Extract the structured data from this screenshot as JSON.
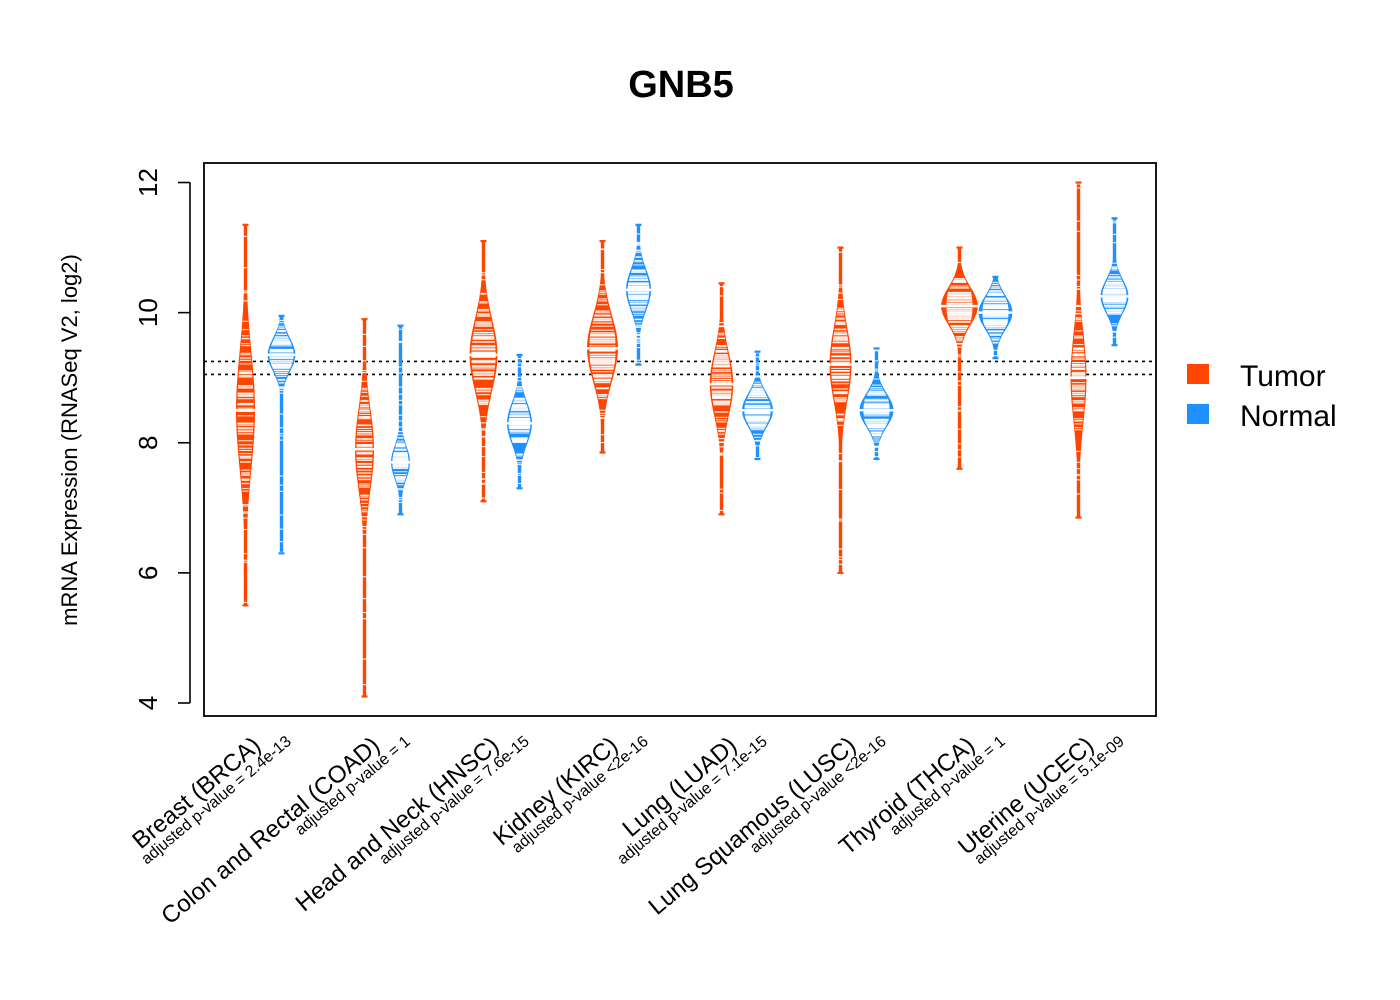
{
  "chart_data": {
    "type": "beanplot",
    "title": "GNB5",
    "ylabel": "mRNA Expression (RNASeq V2, log2)",
    "xlabel": "",
    "ylim": [
      4,
      12
    ],
    "yticks": [
      4,
      6,
      8,
      10,
      12
    ],
    "reference_lines": [
      9.05,
      9.25
    ],
    "legend": {
      "position": "right",
      "entries": [
        {
          "name": "Tumor",
          "color": "#FF4500"
        },
        {
          "name": "Normal",
          "color": "#1E90FF"
        }
      ]
    },
    "categories": [
      {
        "label": "Breast (BRCA)",
        "pvalue": "adjusted p-value = 2.4e-13",
        "tumor": {
          "median": 8.5,
          "min": 5.5,
          "max": 11.35,
          "width": 0.6
        },
        "normal": {
          "median": 9.35,
          "min": 6.3,
          "max": 9.95,
          "width": 0.9
        }
      },
      {
        "label": "Colon and Rectal (COAD)",
        "pvalue": "adjusted p-value = 1",
        "tumor": {
          "median": 7.9,
          "min": 4.1,
          "max": 9.9,
          "width": 0.6
        },
        "normal": {
          "median": 7.7,
          "min": 6.9,
          "max": 9.8,
          "width": 0.6
        }
      },
      {
        "label": "Head and Neck (HNSC)",
        "pvalue": "adjusted p-value = 7.6e-15",
        "tumor": {
          "median": 9.35,
          "min": 7.1,
          "max": 11.1,
          "width": 0.9
        },
        "normal": {
          "median": 8.3,
          "min": 7.3,
          "max": 9.35,
          "width": 0.8
        }
      },
      {
        "label": "Kidney (KIRC)",
        "pvalue": "adjusted p-value <2e-16",
        "tumor": {
          "median": 9.45,
          "min": 7.85,
          "max": 11.1,
          "width": 1.0
        },
        "normal": {
          "median": 10.35,
          "min": 9.2,
          "max": 11.35,
          "width": 0.8
        }
      },
      {
        "label": "Lung (LUAD)",
        "pvalue": "adjusted p-value = 7.1e-15",
        "tumor": {
          "median": 8.9,
          "min": 6.9,
          "max": 10.45,
          "width": 0.75
        },
        "normal": {
          "median": 8.5,
          "min": 7.75,
          "max": 9.4,
          "width": 1.0
        }
      },
      {
        "label": "Lung Squamous (LUSC)",
        "pvalue": "adjusted p-value <2e-16",
        "tumor": {
          "median": 9.2,
          "min": 6.0,
          "max": 11.0,
          "width": 0.7
        },
        "normal": {
          "median": 8.5,
          "min": 7.75,
          "max": 9.45,
          "width": 1.1
        }
      },
      {
        "label": "Thyroid (THCA)",
        "pvalue": "adjusted p-value = 1",
        "tumor": {
          "median": 10.1,
          "min": 7.6,
          "max": 11.0,
          "width": 1.2
        },
        "normal": {
          "median": 10.0,
          "min": 9.3,
          "max": 10.55,
          "width": 1.1
        }
      },
      {
        "label": "Uterine (UCEC)",
        "pvalue": "adjusted p-value = 5.1e-09",
        "tumor": {
          "median": 9.0,
          "min": 6.85,
          "max": 12.0,
          "width": 0.5
        },
        "normal": {
          "median": 10.25,
          "min": 9.5,
          "max": 11.45,
          "width": 0.9
        }
      }
    ]
  }
}
